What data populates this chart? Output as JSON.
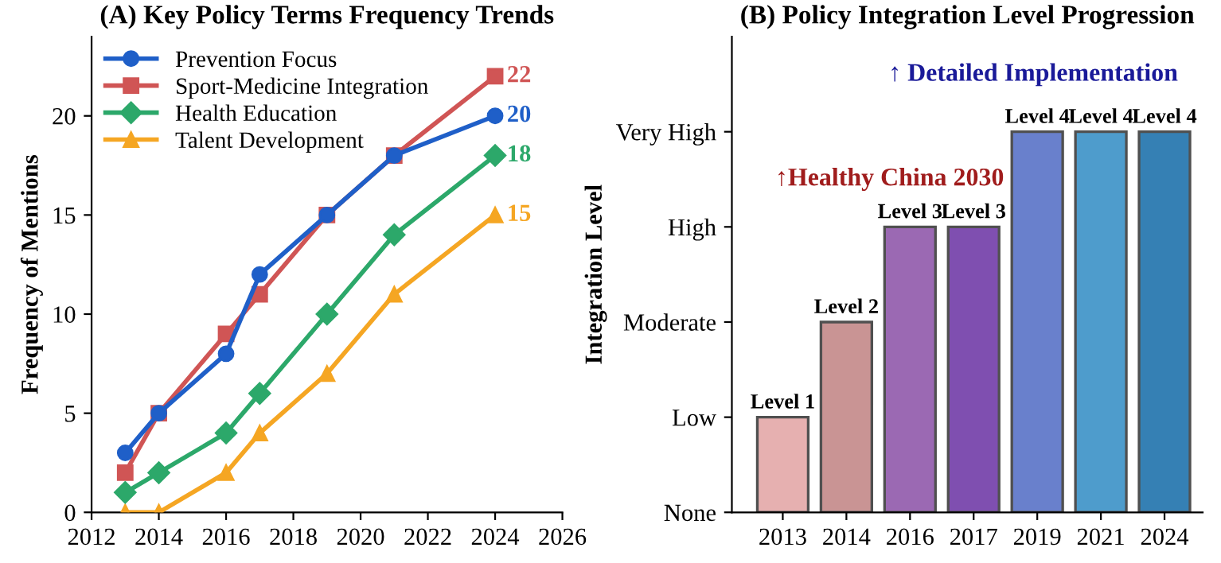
{
  "chart_data": [
    {
      "type": "line",
      "title": "(A) Key Policy Terms Frequency Trends",
      "ylabel": "Frequency of Mentions",
      "x": [
        2013,
        2014,
        2016,
        2017,
        2019,
        2021,
        2024
      ],
      "series": [
        {
          "name": "Prevention Focus",
          "color": "#1f5fc8",
          "marker": "circle",
          "values": [
            3,
            5,
            8,
            12,
            15,
            18,
            20
          ],
          "value_labels": [
            null,
            null,
            null,
            null,
            null,
            null,
            "20"
          ]
        },
        {
          "name": "Sport-Medicine Integration",
          "color": "#d05555",
          "marker": "square",
          "values": [
            2,
            5,
            9,
            11,
            15,
            18,
            22
          ],
          "value_labels": [
            null,
            null,
            null,
            null,
            null,
            null,
            "22"
          ]
        },
        {
          "name": "Health Education",
          "color": "#2ca86a",
          "marker": "diamond",
          "values": [
            1,
            2,
            4,
            6,
            10,
            14,
            18
          ],
          "value_labels": [
            null,
            null,
            null,
            null,
            null,
            null,
            "18"
          ]
        },
        {
          "name": "Talent Development",
          "color": "#f5a623",
          "marker": "triangle",
          "values": [
            0,
            0,
            2,
            4,
            7,
            11,
            15
          ],
          "value_labels": [
            null,
            null,
            null,
            null,
            null,
            null,
            "15"
          ]
        }
      ],
      "xlim": [
        2012,
        2026
      ],
      "xticks": [
        2012,
        2014,
        2016,
        2018,
        2020,
        2022,
        2024,
        2026
      ],
      "ylim": [
        0,
        24
      ],
      "yticks": [
        0,
        5,
        10,
        15,
        20
      ],
      "legend": "top left",
      "grid": false,
      "line_style": "solid"
    },
    {
      "type": "bar",
      "title": "(B) Policy Integration Level Progression",
      "ylabel": "Integration Level",
      "categories": [
        "2013",
        "2014",
        "2016",
        "2017",
        "2019",
        "2021",
        "2024"
      ],
      "values": [
        1,
        2,
        3,
        3,
        4,
        4,
        4
      ],
      "colors": [
        "#e6b0b0",
        "#c99494",
        "#9b69b3",
        "#7f4fb0",
        "#6980cc",
        "#4e9ccc",
        "#3580b4"
      ],
      "value_labels": [
        "Level 1",
        "Level 2",
        "Level 3",
        "Level 3",
        "Level 4",
        "Level 4",
        "Level 4"
      ],
      "ylim": [
        0,
        5
      ],
      "y_categories": [
        "None",
        "Low",
        "Moderate",
        "High",
        "Very High"
      ],
      "annotations": [
        "↑Healthy China 2030",
        "↑ Detailed Implementation"
      ],
      "grid": false
    }
  ]
}
